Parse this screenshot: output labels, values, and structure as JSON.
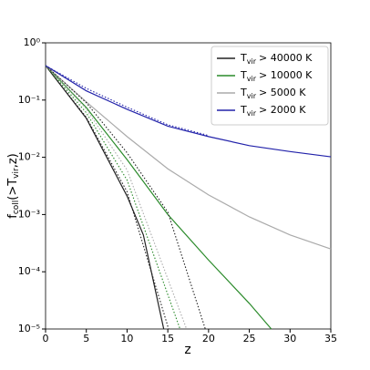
{
  "chart_data": {
    "type": "line",
    "log_y": true,
    "xlabel": "z",
    "ylabel": [
      "f",
      "coll",
      "(>T",
      "vir",
      ",z)"
    ],
    "xlim": [
      0,
      35
    ],
    "xticks": [
      0,
      5,
      10,
      15,
      20,
      25,
      30,
      35
    ],
    "ylim": [
      1e-05,
      1
    ],
    "yticks": [
      {
        "value": 1,
        "label": "10⁰"
      },
      {
        "value": 0.1,
        "label": "10⁻¹"
      },
      {
        "value": 0.01,
        "label": "10⁻²"
      },
      {
        "value": 0.001,
        "label": "10⁻³"
      },
      {
        "value": 0.0001,
        "label": "10⁻⁴"
      },
      {
        "value": 1e-05,
        "label": "10⁻⁵"
      }
    ],
    "legend": "upper right",
    "series": [
      {
        "name": [
          "T",
          "vir",
          "> 40000 K"
        ],
        "color": "#222222",
        "x": [
          0,
          5,
          10,
          12,
          14.5
        ],
        "values": [
          0.4,
          0.048,
          0.0021,
          0.00044,
          1e-05
        ]
      },
      {
        "name": [
          "T",
          "vir",
          "> 10000 K"
        ],
        "color": "#2a8a2a",
        "x": [
          0,
          5,
          10,
          15,
          20,
          25,
          27.7
        ],
        "values": [
          0.4,
          0.074,
          0.0091,
          0.001,
          0.00016,
          2.8e-05,
          1e-05
        ]
      },
      {
        "name": [
          "T",
          "vir",
          "> 5000 K"
        ],
        "color": "#aaaaaa",
        "x": [
          0,
          5,
          10,
          15,
          20,
          25,
          30,
          35
        ],
        "values": [
          0.4,
          0.093,
          0.023,
          0.0063,
          0.0022,
          0.00091,
          0.00044,
          0.00025
        ]
      },
      {
        "name": [
          "T",
          "vir",
          "> 2000 K"
        ],
        "color": "#2222aa",
        "x": [
          0,
          5,
          10,
          15,
          20,
          25,
          30,
          35
        ],
        "values": [
          0.4,
          0.145,
          0.069,
          0.035,
          0.023,
          0.016,
          0.0126,
          0.0102
        ]
      },
      {
        "color": "#222222",
        "dotted": true,
        "x": [
          0,
          5,
          10,
          15.1
        ],
        "values": [
          0.4,
          0.05,
          0.0025,
          1e-05
        ]
      },
      {
        "color": "#2a8a2a",
        "dotted": true,
        "x": [
          0,
          5,
          10,
          16.5
        ],
        "values": [
          0.4,
          0.06,
          0.004,
          1e-05
        ]
      },
      {
        "color": "#aaaaaa",
        "dotted": true,
        "x": [
          0,
          5,
          10,
          17.3
        ],
        "values": [
          0.4,
          0.07,
          0.006,
          1e-05
        ]
      },
      {
        "color": "#222222",
        "dotted": true,
        "x": [
          0,
          5,
          10,
          15,
          19.6
        ],
        "values": [
          0.4,
          0.09,
          0.012,
          0.0011,
          1e-05
        ]
      },
      {
        "color": "#2222aa",
        "dotted": true,
        "x": [
          0,
          5,
          10,
          15,
          20
        ],
        "values": [
          0.4,
          0.16,
          0.075,
          0.037,
          0.024
        ]
      }
    ]
  }
}
